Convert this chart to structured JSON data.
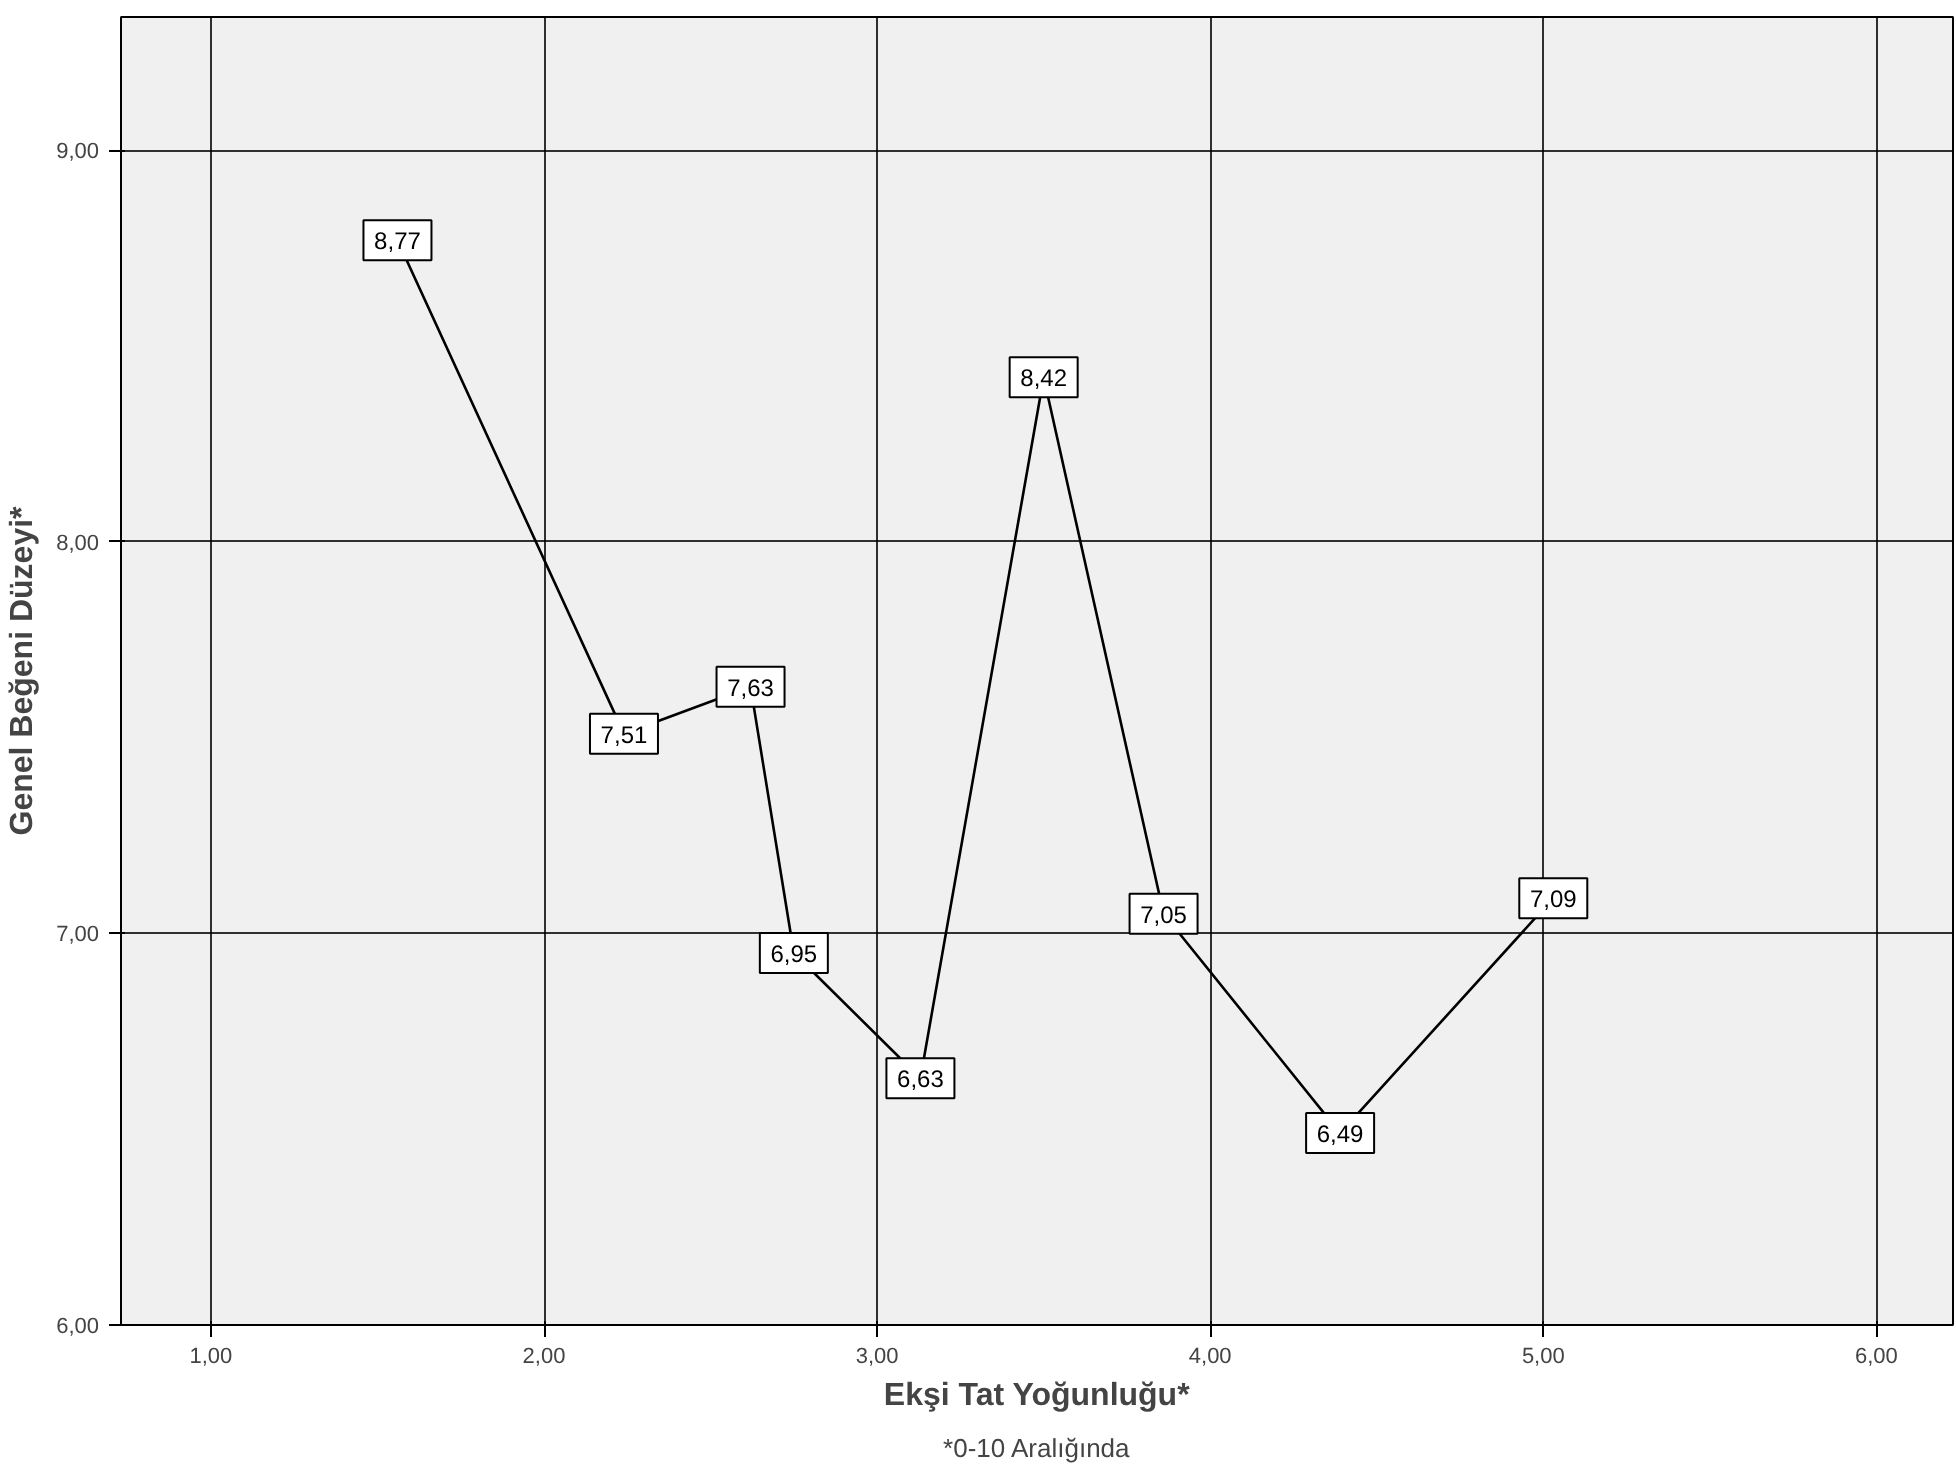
{
  "chart_data": {
    "type": "line",
    "xlabel": "Ekşi Tat Yoğunluğu*",
    "ylabel": "Genel Beğeni Düzeyi*",
    "annotations": [
      "*0-10 Aralığında"
    ],
    "x": [
      1.56,
      2.24,
      2.62,
      2.75,
      3.13,
      3.5,
      3.86,
      4.39,
      5.03
    ],
    "series": [
      {
        "color": "#000000",
        "values": [
          8.77,
          7.51,
          7.63,
          6.95,
          6.63,
          8.42,
          7.05,
          6.49,
          7.09
        ],
        "value_labels": [
          "8,77",
          "7,51",
          "7,63",
          "6,95",
          "6,63",
          "8,42",
          "7,05",
          "6,49",
          "7,09"
        ]
      }
    ],
    "xlim": [
      0.73,
      6.23
    ],
    "ylim": [
      6.0,
      9.34
    ],
    "xticks": [
      {
        "value": 1,
        "label": "1,00"
      },
      {
        "value": 2,
        "label": "2,00"
      },
      {
        "value": 3,
        "label": "3,00"
      },
      {
        "value": 4,
        "label": "4,00"
      },
      {
        "value": 5,
        "label": "5,00"
      },
      {
        "value": 6,
        "label": "6,00"
      }
    ],
    "yticks": [
      {
        "value": 6,
        "label": "6,00"
      },
      {
        "value": 7,
        "label": "7,00"
      },
      {
        "value": 8,
        "label": "8,00"
      },
      {
        "value": 9,
        "label": "9,00"
      }
    ],
    "grid": true,
    "marker": "square",
    "line_style": "solid"
  }
}
